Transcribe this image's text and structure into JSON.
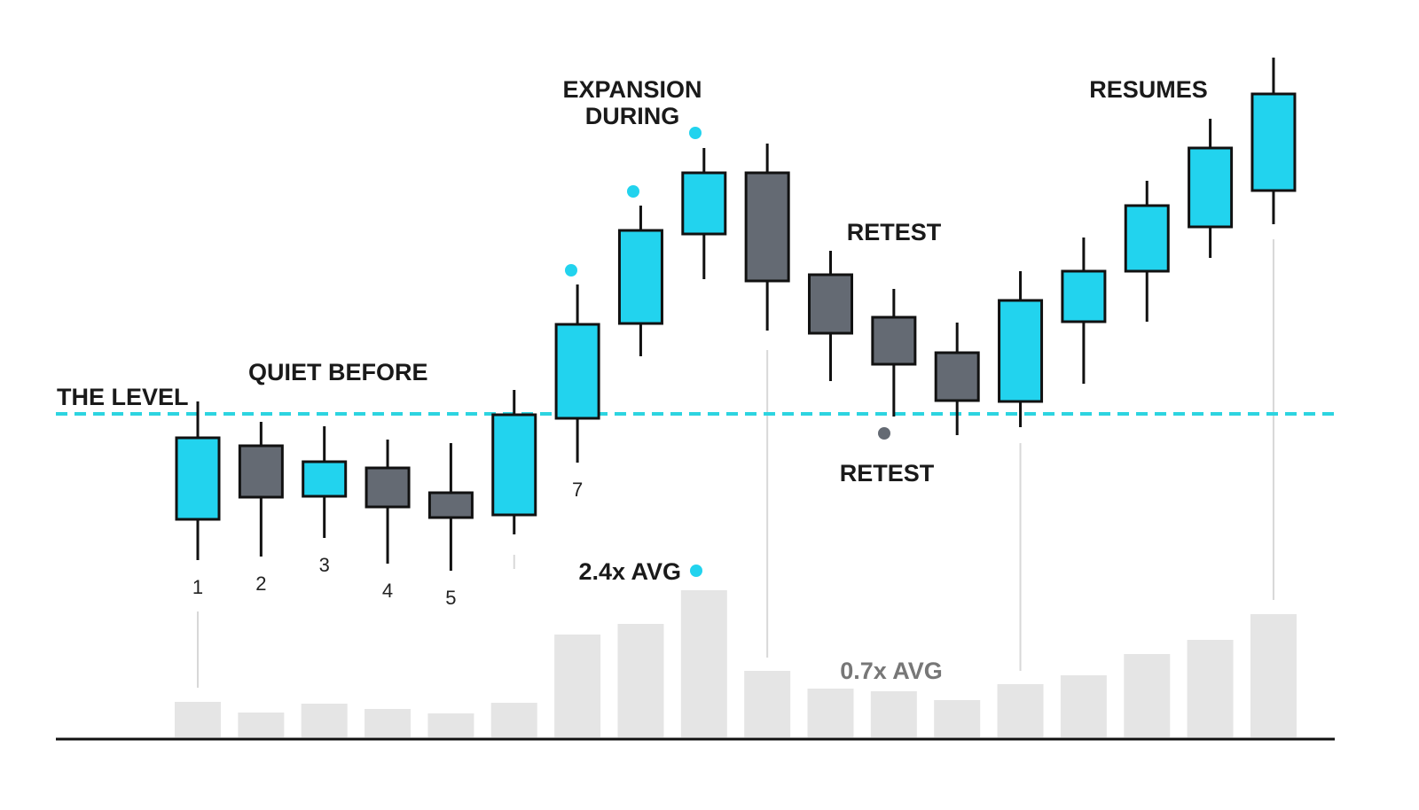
{
  "chart_data": {
    "type": "candlestick",
    "categories": [
      "1",
      "2",
      "3",
      "4",
      "5",
      null,
      "7",
      null,
      null,
      null,
      null,
      null,
      null,
      null,
      null,
      null,
      null,
      null
    ],
    "open": [
      314,
      397,
      340,
      372,
      344,
      319,
      428,
      535,
      636,
      705,
      590,
      542,
      502,
      447,
      537,
      594,
      644,
      685
    ],
    "high": [
      447,
      424,
      419,
      404,
      400,
      460,
      579,
      668,
      733,
      738,
      617,
      574,
      536,
      594,
      632,
      696,
      766,
      835
    ],
    "low": [
      268,
      272,
      293,
      264,
      256,
      297,
      378,
      498,
      585,
      527,
      470,
      430,
      409,
      418,
      467,
      537,
      609,
      647
    ],
    "close": [
      406,
      339,
      379,
      328,
      316,
      432,
      534,
      640,
      705,
      583,
      524,
      489,
      448,
      561,
      594,
      668,
      733,
      794
    ],
    "volume": [
      40,
      28,
      38,
      32,
      27,
      39,
      116,
      128,
      166,
      75,
      55,
      52,
      42,
      60,
      70,
      94,
      110,
      139
    ],
    "ylim": [
      0,
      900
    ],
    "volume_ylim": [
      0,
      200
    ],
    "level": 433,
    "up_color": "#22d3ee",
    "down_color": "#646a73",
    "volume_color": "#e5e5e5",
    "annotations": {
      "level": "THE LEVEL",
      "quiet": "QUIET BEFORE",
      "expansion": [
        "EXPANSION",
        "DURING"
      ],
      "retest_top": "RETEST",
      "retest_bottom": "RETEST",
      "resumes": "RESUMES",
      "high_volume": "2.4x AVG",
      "low_volume": "0.7x AVG"
    }
  }
}
